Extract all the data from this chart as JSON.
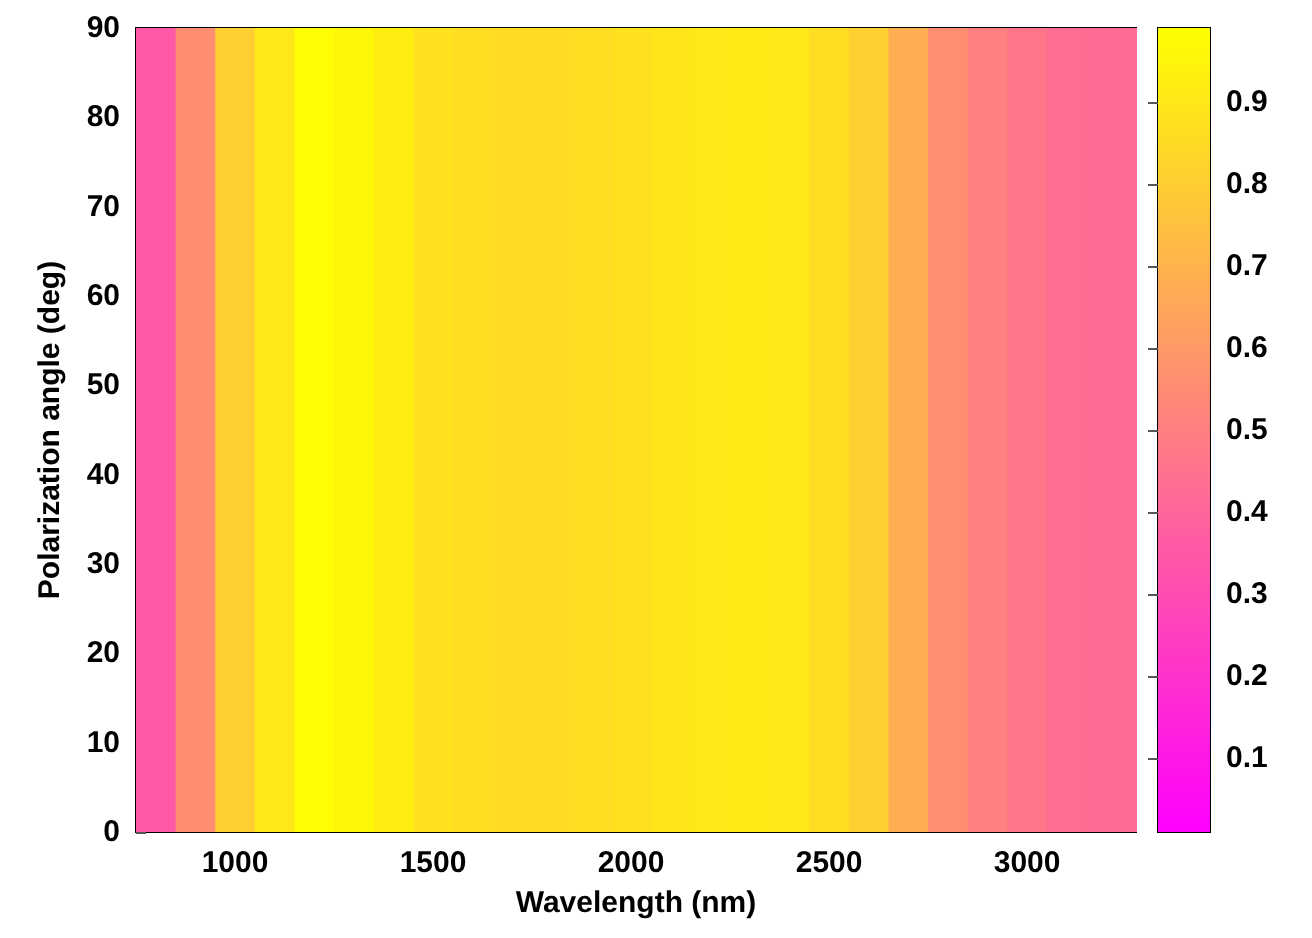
{
  "chart_data": {
    "type": "heatmap",
    "xlabel": "Wavelength (nm)",
    "ylabel": "Polarization angle (deg)",
    "x": [
      800,
      900,
      1000,
      1100,
      1200,
      1300,
      1400,
      1500,
      1600,
      1700,
      1800,
      1900,
      2000,
      2100,
      2200,
      2300,
      2400,
      2500,
      2600,
      2700,
      2800,
      2900,
      3000,
      3100,
      3200
    ],
    "cells": [
      [
        0.35,
        0.55,
        0.8,
        0.9,
        0.98,
        0.96,
        0.92,
        0.88,
        0.86,
        0.85,
        0.85,
        0.86,
        0.87,
        0.89,
        0.9,
        0.91,
        0.9,
        0.86,
        0.8,
        0.68,
        0.56,
        0.5,
        0.46,
        0.43,
        0.42
      ]
    ],
    "xlim": [
      750,
      3275
    ],
    "xticks": [
      1000,
      1500,
      2000,
      2500,
      3000
    ],
    "ylim": [
      0,
      90
    ],
    "yticks": [
      0,
      10,
      20,
      30,
      40,
      50,
      60,
      70,
      80,
      90
    ],
    "clim": [
      0.01,
      0.99
    ],
    "cticks": [
      0.1,
      0.2,
      0.3,
      0.4,
      0.5,
      0.6,
      0.7,
      0.8,
      0.9
    ]
  }
}
